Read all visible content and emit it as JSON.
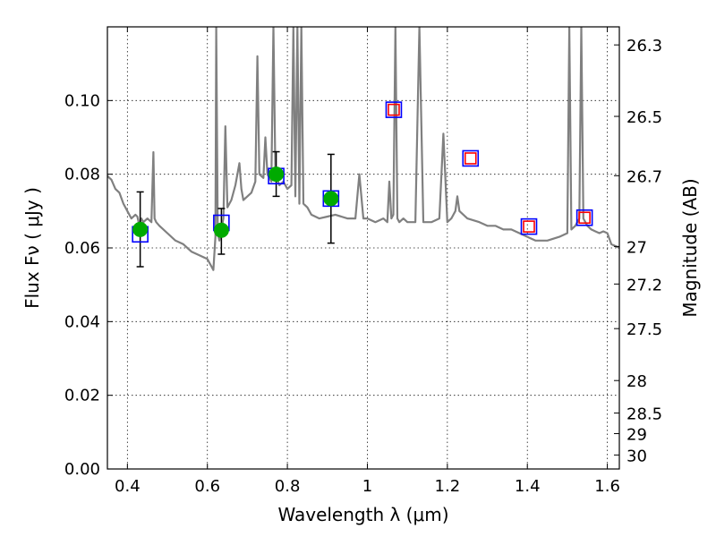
{
  "chart_data": {
    "type": "scatter",
    "title": "",
    "xlabel": "Wavelength  λ (μm)",
    "ylabel": "Flux  Fν  ( μJy )",
    "ylabel_right": "Magnitude (AB)",
    "xlim": [
      0.35,
      1.63
    ],
    "ylim": [
      0.0,
      0.12
    ],
    "grid": true,
    "x_ticks": [
      0.4,
      0.6,
      0.8,
      1.0,
      1.2,
      1.4,
      1.6
    ],
    "x_tick_labels": [
      "0.4",
      "0.6",
      "0.8",
      "1",
      "1.2",
      "1.4",
      "1.6"
    ],
    "y_ticks": [
      0.0,
      0.02,
      0.04,
      0.06,
      0.08,
      0.1
    ],
    "y_tick_labels": [
      "0.00",
      "0.02",
      "0.04",
      "0.06",
      "0.08",
      "0.10"
    ],
    "right_ticks": [
      {
        "label": "26.3",
        "flux": 0.1151
      },
      {
        "label": "26.5",
        "flux": 0.0957
      },
      {
        "label": "26.7",
        "flux": 0.0796
      },
      {
        "label": "27",
        "flux": 0.0604
      },
      {
        "label": "27.2",
        "flux": 0.0502
      },
      {
        "label": "27.5",
        "flux": 0.0381
      },
      {
        "label": "28",
        "flux": 0.024
      },
      {
        "label": "28.5",
        "flux": 0.0152
      },
      {
        "label": "29",
        "flux": 0.0096
      },
      {
        "label": "30",
        "flux": 0.0038
      }
    ],
    "series": [
      {
        "type": "line",
        "color": "#808080",
        "x": [
          0.35,
          0.36,
          0.37,
          0.38,
          0.39,
          0.4,
          0.41,
          0.42,
          0.425,
          0.43,
          0.435,
          0.44,
          0.45,
          0.46,
          0.465,
          0.468,
          0.472,
          0.48,
          0.5,
          0.52,
          0.54,
          0.56,
          0.58,
          0.6,
          0.61,
          0.615,
          0.62,
          0.622,
          0.626,
          0.63,
          0.64,
          0.645,
          0.65,
          0.66,
          0.67,
          0.68,
          0.685,
          0.69,
          0.7,
          0.71,
          0.72,
          0.725,
          0.73,
          0.74,
          0.745,
          0.75,
          0.76,
          0.765,
          0.77,
          0.78,
          0.79,
          0.8,
          0.81,
          0.815,
          0.82,
          0.825,
          0.83,
          0.835,
          0.84,
          0.85,
          0.86,
          0.88,
          0.9,
          0.92,
          0.95,
          0.97,
          0.98,
          0.99,
          1.0,
          1.02,
          1.04,
          1.05,
          1.055,
          1.06,
          1.065,
          1.07,
          1.075,
          1.08,
          1.09,
          1.1,
          1.12,
          1.13,
          1.14,
          1.16,
          1.18,
          1.19,
          1.2,
          1.21,
          1.22,
          1.225,
          1.23,
          1.25,
          1.28,
          1.3,
          1.32,
          1.34,
          1.36,
          1.38,
          1.4,
          1.42,
          1.45,
          1.48,
          1.5,
          1.505,
          1.51,
          1.52,
          1.53,
          1.535,
          1.54,
          1.55,
          1.56,
          1.57,
          1.58,
          1.59,
          1.6,
          1.61,
          1.63
        ],
        "y": [
          0.0795,
          0.0785,
          0.076,
          0.075,
          0.072,
          0.07,
          0.068,
          0.069,
          0.0685,
          0.066,
          0.068,
          0.067,
          0.068,
          0.067,
          0.086,
          0.068,
          0.067,
          0.066,
          0.064,
          0.062,
          0.061,
          0.059,
          0.058,
          0.057,
          0.055,
          0.054,
          0.063,
          0.12,
          0.064,
          0.062,
          0.068,
          0.093,
          0.071,
          0.073,
          0.077,
          0.083,
          0.076,
          0.073,
          0.074,
          0.075,
          0.078,
          0.112,
          0.08,
          0.079,
          0.09,
          0.08,
          0.078,
          0.12,
          0.08,
          0.077,
          0.078,
          0.076,
          0.077,
          0.12,
          0.074,
          0.12,
          0.072,
          0.12,
          0.072,
          0.071,
          0.069,
          0.068,
          0.0685,
          0.069,
          0.068,
          0.068,
          0.08,
          0.068,
          0.068,
          0.067,
          0.068,
          0.067,
          0.078,
          0.068,
          0.069,
          0.12,
          0.068,
          0.067,
          0.068,
          0.067,
          0.067,
          0.12,
          0.067,
          0.067,
          0.068,
          0.091,
          0.067,
          0.068,
          0.07,
          0.074,
          0.07,
          0.068,
          0.067,
          0.066,
          0.066,
          0.065,
          0.065,
          0.064,
          0.063,
          0.062,
          0.062,
          0.063,
          0.064,
          0.12,
          0.065,
          0.066,
          0.068,
          0.12,
          0.068,
          0.066,
          0.065,
          0.0645,
          0.064,
          0.0645,
          0.064,
          0.061,
          0.06
        ]
      },
      {
        "type": "scatter",
        "marker": "square",
        "color": "#0000ff",
        "x": [
          0.432,
          0.635,
          0.772,
          0.909,
          1.066,
          1.258,
          1.404,
          1.543
        ],
        "y": [
          0.0637,
          0.0668,
          0.0795,
          0.0734,
          0.0975,
          0.0843,
          0.0658,
          0.0682
        ]
      },
      {
        "type": "scatter",
        "marker": "square",
        "color": "#ff0000",
        "x": [
          1.066,
          1.258,
          1.404,
          1.543
        ],
        "y": [
          0.0975,
          0.0843,
          0.0658,
          0.0682
        ]
      },
      {
        "type": "scatter",
        "marker": "circle",
        "color": "#00aa00",
        "x": [
          0.432,
          0.635,
          0.772,
          0.909
        ],
        "y": [
          0.065,
          0.0648,
          0.08,
          0.0734
        ],
        "yerr_low": [
          0.0549,
          0.0583,
          0.074,
          0.0613
        ],
        "yerr_high": [
          0.0752,
          0.0707,
          0.0861,
          0.0854
        ]
      }
    ]
  }
}
